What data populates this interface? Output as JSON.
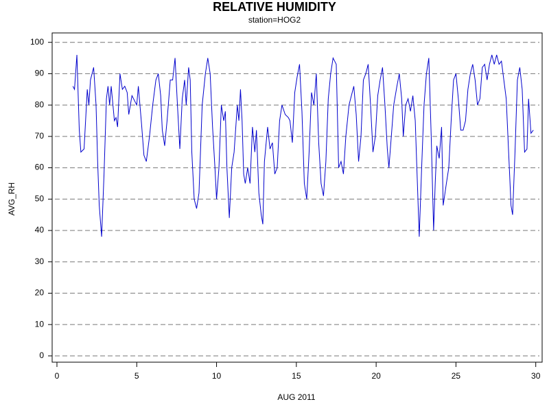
{
  "chart_data": {
    "type": "line",
    "title": "RELATIVE HUMIDITY",
    "subtitle": "station=HOG2",
    "x_label": "AUG 2011",
    "y_label": "AVG_RH",
    "xlim": [
      -0.3,
      30.4
    ],
    "xticks": [
      0,
      5,
      10,
      15,
      20,
      25,
      30
    ],
    "ylim": [
      -2,
      103
    ],
    "yticks": [
      0,
      10,
      20,
      30,
      40,
      50,
      60,
      70,
      80,
      90,
      100
    ],
    "grid": true,
    "series": [
      {
        "name": "AVG_RH",
        "color": "#0000cc",
        "x": [
          1.0,
          1.1,
          1.25,
          1.4,
          1.5,
          1.7,
          1.9,
          2.0,
          2.1,
          2.3,
          2.45,
          2.55,
          2.65,
          2.8,
          2.95,
          3.1,
          3.2,
          3.3,
          3.4,
          3.6,
          3.7,
          3.8,
          3.95,
          4.1,
          4.25,
          4.4,
          4.5,
          4.7,
          4.9,
          5.0,
          5.1,
          5.3,
          5.45,
          5.6,
          5.8,
          6.0,
          6.2,
          6.35,
          6.5,
          6.6,
          6.75,
          6.9,
          7.1,
          7.25,
          7.4,
          7.55,
          7.7,
          7.85,
          8.0,
          8.1,
          8.25,
          8.35,
          8.45,
          8.6,
          8.75,
          8.9,
          9.1,
          9.3,
          9.45,
          9.6,
          9.75,
          9.9,
          10.0,
          10.15,
          10.3,
          10.45,
          10.55,
          10.65,
          10.8,
          10.95,
          11.1,
          11.3,
          11.4,
          11.5,
          11.6,
          11.7,
          11.8,
          11.95,
          12.1,
          12.25,
          12.4,
          12.5,
          12.65,
          12.8,
          12.9,
          13.0,
          13.2,
          13.35,
          13.5,
          13.65,
          13.8,
          13.95,
          14.1,
          14.3,
          14.5,
          14.6,
          14.75,
          14.9,
          15.05,
          15.2,
          15.35,
          15.5,
          15.65,
          15.8,
          15.95,
          16.1,
          16.25,
          16.4,
          16.55,
          16.7,
          16.85,
          17.0,
          17.15,
          17.3,
          17.5,
          17.65,
          17.8,
          17.95,
          18.1,
          18.3,
          18.45,
          18.6,
          18.75,
          18.9,
          19.05,
          19.2,
          19.35,
          19.5,
          19.65,
          19.8,
          19.95,
          20.1,
          20.25,
          20.4,
          20.55,
          20.7,
          20.8,
          20.95,
          21.1,
          21.3,
          21.45,
          21.6,
          21.7,
          21.85,
          22.0,
          22.15,
          22.3,
          22.45,
          22.55,
          22.7,
          22.85,
          23.0,
          23.15,
          23.3,
          23.45,
          23.6,
          23.7,
          23.8,
          23.95,
          24.1,
          24.2,
          24.4,
          24.55,
          24.7,
          24.85,
          25.0,
          25.15,
          25.3,
          25.45,
          25.6,
          25.75,
          25.9,
          26.05,
          26.2,
          26.35,
          26.5,
          26.65,
          26.8,
          26.95,
          27.1,
          27.25,
          27.4,
          27.55,
          27.7,
          27.85,
          28.0,
          28.15,
          28.3,
          28.45,
          28.55,
          28.7,
          28.85,
          29.0,
          29.15,
          29.3,
          29.45,
          29.55,
          29.7,
          29.85
        ],
        "values": [
          86,
          85,
          96,
          72,
          65,
          66,
          85,
          80,
          88,
          92,
          80,
          62,
          48,
          38,
          58,
          82,
          86,
          80,
          86,
          75,
          76,
          73,
          90,
          85,
          86,
          84,
          77,
          83,
          81,
          80,
          86,
          74,
          64,
          62,
          70,
          80,
          88,
          90,
          83,
          72,
          67,
          75,
          88,
          88,
          95,
          80,
          66,
          82,
          88,
          80,
          92,
          88,
          65,
          50,
          47,
          52,
          80,
          90,
          95,
          90,
          73,
          60,
          50,
          60,
          80,
          75,
          78,
          60,
          44,
          60,
          65,
          80,
          75,
          85,
          75,
          58,
          55,
          60,
          55,
          73,
          65,
          72,
          52,
          45,
          42,
          62,
          73,
          66,
          68,
          58,
          60,
          75,
          80,
          77,
          76,
          75,
          68,
          84,
          89,
          93,
          78,
          55,
          50,
          65,
          84,
          80,
          90,
          68,
          55,
          51,
          62,
          82,
          90,
          95,
          93,
          60,
          62,
          58,
          70,
          80,
          83,
          86,
          77,
          62,
          70,
          88,
          90,
          93,
          80,
          65,
          70,
          83,
          88,
          92,
          80,
          66,
          60,
          70,
          80,
          86,
          90,
          82,
          70,
          80,
          82,
          78,
          83,
          75,
          60,
          38,
          60,
          80,
          90,
          95,
          70,
          40,
          55,
          67,
          63,
          73,
          48,
          55,
          60,
          75,
          88,
          90,
          82,
          72,
          72,
          75,
          85,
          90,
          93,
          88,
          80,
          82,
          92,
          93,
          88,
          93,
          96,
          93,
          96,
          93,
          94,
          88,
          82,
          65,
          48,
          45,
          65,
          88,
          92,
          85,
          65,
          66,
          82,
          71,
          72
        ]
      }
    ]
  }
}
